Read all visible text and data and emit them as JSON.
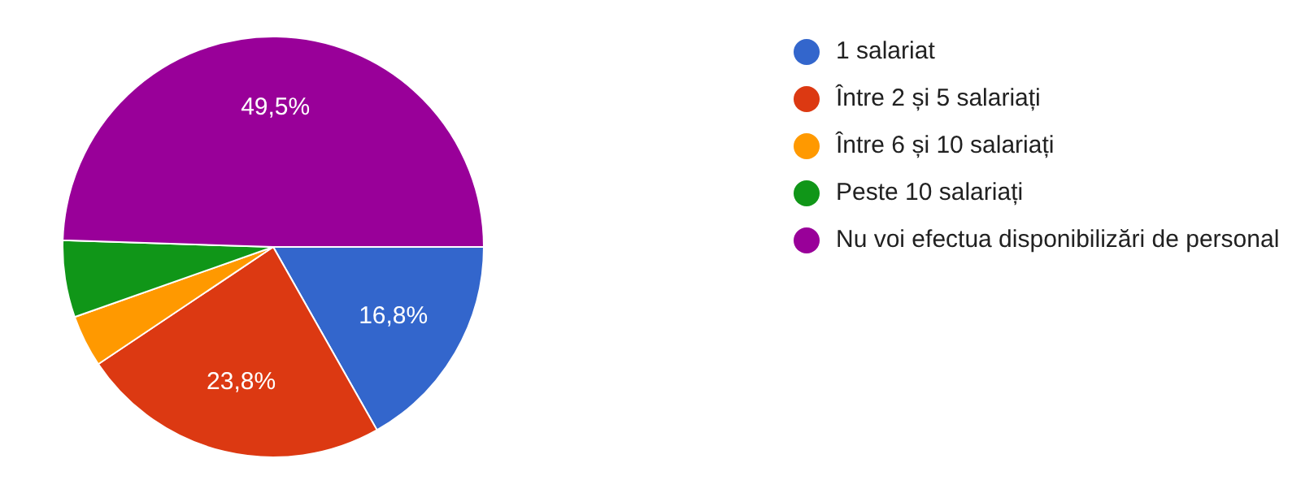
{
  "chart_data": {
    "type": "pie",
    "categories": [
      "1 salariat",
      "Între 2 și 5 salariați",
      "Între 6 și 10 salariați",
      "Peste 10 salariați",
      "Nu voi efectua disponibilizări de personal"
    ],
    "values": [
      16.8,
      23.8,
      4,
      5.9,
      49.5
    ],
    "colors": [
      "#3366cc",
      "#dc3912",
      "#ff9900",
      "#109618",
      "#990099"
    ],
    "value_labels": [
      "16,8%",
      "23,8%",
      null,
      null,
      "49,5%"
    ],
    "legend": "right"
  }
}
